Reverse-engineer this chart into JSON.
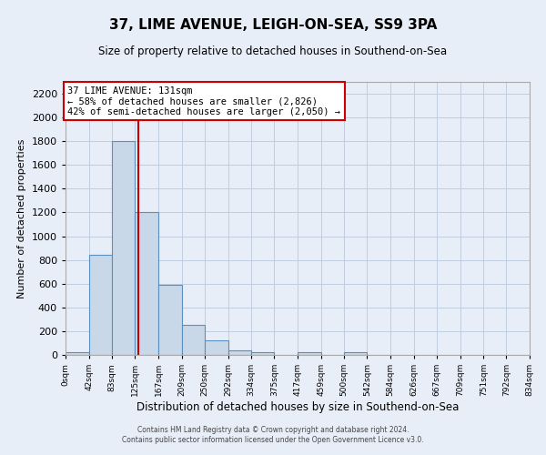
{
  "title": "37, LIME AVENUE, LEIGH-ON-SEA, SS9 3PA",
  "subtitle": "Size of property relative to detached houses in Southend-on-Sea",
  "xlabel": "Distribution of detached houses by size in Southend-on-Sea",
  "ylabel": "Number of detached properties",
  "footer_line1": "Contains HM Land Registry data © Crown copyright and database right 2024.",
  "footer_line2": "Contains public sector information licensed under the Open Government Licence v3.0.",
  "annotation_title": "37 LIME AVENUE: 131sqm",
  "annotation_line1": "← 58% of detached houses are smaller (2,826)",
  "annotation_line2": "42% of semi-detached houses are larger (2,050) →",
  "property_size": 131,
  "bin_edges": [
    0,
    42,
    83,
    125,
    167,
    209,
    250,
    292,
    334,
    375,
    417,
    459,
    500,
    542,
    584,
    626,
    667,
    709,
    751,
    792,
    834
  ],
  "bin_counts": [
    20,
    840,
    1800,
    1200,
    590,
    255,
    120,
    40,
    20,
    0,
    20,
    0,
    20,
    0,
    0,
    0,
    0,
    0,
    0,
    0
  ],
  "bar_color": "#c8d8e8",
  "bar_edge_color": "#5a8fbf",
  "line_color": "#cc0000",
  "grid_color": "#c0cce0",
  "bg_color": "#e8eef8",
  "annotation_box_color": "#ffffff",
  "annotation_box_edge": "#cc0000",
  "ylim": [
    0,
    2300
  ],
  "yticks": [
    0,
    200,
    400,
    600,
    800,
    1000,
    1200,
    1400,
    1600,
    1800,
    2000,
    2200
  ],
  "tick_labels": [
    "0sqm",
    "42sqm",
    "83sqm",
    "125sqm",
    "167sqm",
    "209sqm",
    "250sqm",
    "292sqm",
    "334sqm",
    "375sqm",
    "417sqm",
    "459sqm",
    "500sqm",
    "542sqm",
    "584sqm",
    "626sqm",
    "667sqm",
    "709sqm",
    "751sqm",
    "792sqm",
    "834sqm"
  ]
}
